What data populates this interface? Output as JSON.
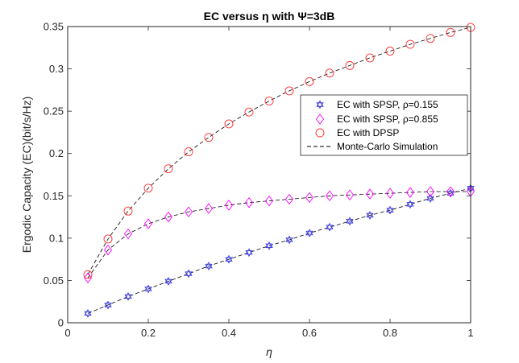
{
  "chart_data": {
    "type": "line",
    "title": "EC versus η with Ψ=3dB",
    "xlabel": "η",
    "ylabel": "Ergodic Capacity (EC)(bit/s/Hz)",
    "xlim": [
      0,
      1
    ],
    "ylim": [
      0,
      0.35
    ],
    "xticks": [
      0,
      0.2,
      0.4,
      0.6,
      0.8,
      1
    ],
    "xtick_labels": [
      "0",
      "0.2",
      "0.4",
      "0.6",
      "0.8",
      "1"
    ],
    "yticks": [
      0,
      0.05,
      0.1,
      0.15,
      0.2,
      0.25,
      0.3,
      0.35
    ],
    "ytick_labels": [
      "0",
      "0.05",
      "0.1",
      "0.15",
      "0.2",
      "0.25",
      "0.3",
      "0.35"
    ],
    "grid": false,
    "legend_position": "top-right",
    "x": [
      0.05,
      0.1,
      0.15,
      0.2,
      0.25,
      0.3,
      0.35,
      0.4,
      0.45,
      0.5,
      0.55,
      0.6,
      0.65,
      0.7,
      0.75,
      0.8,
      0.85,
      0.9,
      0.95,
      1.0
    ],
    "series": [
      {
        "name": "EC with SPSP, ρ=0.155",
        "marker": "hexagram",
        "color": "#3a3adf",
        "values": [
          0.011,
          0.021,
          0.031,
          0.04,
          0.049,
          0.058,
          0.067,
          0.075,
          0.083,
          0.091,
          0.098,
          0.106,
          0.113,
          0.12,
          0.127,
          0.133,
          0.14,
          0.147,
          0.153,
          0.159
        ]
      },
      {
        "name": "EC with SPSP, ρ=0.855",
        "marker": "diamond",
        "color": "#ff00ff",
        "values": [
          0.053,
          0.086,
          0.105,
          0.117,
          0.125,
          0.131,
          0.135,
          0.139,
          0.142,
          0.144,
          0.146,
          0.148,
          0.15,
          0.151,
          0.152,
          0.153,
          0.154,
          0.155,
          0.155,
          0.155
        ]
      },
      {
        "name": "EC with DPSP",
        "marker": "circle",
        "color": "#ff3030",
        "values": [
          0.057,
          0.099,
          0.132,
          0.159,
          0.182,
          0.202,
          0.219,
          0.235,
          0.249,
          0.262,
          0.274,
          0.285,
          0.295,
          0.304,
          0.313,
          0.321,
          0.329,
          0.336,
          0.343,
          0.349
        ]
      }
    ],
    "simulation": {
      "name": "Monte-Carlo Simulation",
      "style": "dashed",
      "color": "#000000"
    }
  }
}
